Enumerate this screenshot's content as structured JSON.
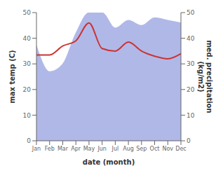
{
  "chart_data": {
    "type": "line",
    "categories": [
      "Jan",
      "Feb",
      "Mar",
      "Apr",
      "May",
      "Jun",
      "Jul",
      "Aug",
      "Sep",
      "Oct",
      "Nov",
      "Dec"
    ],
    "xlabel": "date (month)",
    "ylabel": "max temp (C)",
    "y2label": "med. precipitation\n(kg/m2)",
    "ylim": [
      0,
      50
    ],
    "yticks": [
      0,
      10,
      20,
      30,
      40,
      50
    ],
    "y2lim": [
      0,
      50
    ],
    "y2ticks": [
      0,
      10,
      20,
      30,
      40,
      50
    ],
    "grid": false,
    "series": [
      {
        "type": "area",
        "color": "#b0b8e8",
        "axis": "y2",
        "values": [
          37,
          27,
          30,
          42,
          50,
          50,
          44,
          47,
          45,
          48,
          47,
          46
        ]
      },
      {
        "type": "line",
        "color": "#cc3333",
        "values": [
          33.5,
          33.5,
          37,
          39,
          46,
          36,
          35,
          38.5,
          35,
          33,
          32,
          34
        ]
      }
    ]
  }
}
